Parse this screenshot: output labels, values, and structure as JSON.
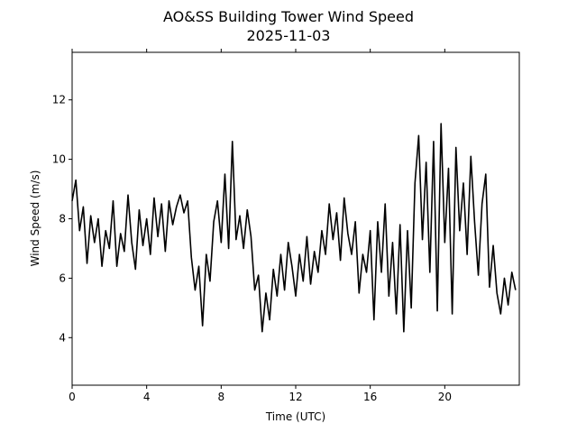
{
  "chart_data": {
    "type": "line",
    "title": "AO&SS Building Tower Wind Speed",
    "subtitle": "2025-11-03",
    "x_label": "Time (UTC)",
    "y_label": "Wind Speed (m/s)",
    "color": "#000000",
    "x": [
      0,
      0.2,
      0.4,
      0.6,
      0.8,
      1,
      1.2,
      1.4,
      1.6,
      1.8,
      2,
      2.2,
      2.4,
      2.6,
      2.8,
      3,
      3.2,
      3.4,
      3.6,
      3.8,
      4,
      4.2,
      4.4,
      4.6,
      4.8,
      5,
      5.2,
      5.4,
      5.6,
      5.8,
      6,
      6.2,
      6.4,
      6.6,
      6.8,
      7,
      7.2,
      7.4,
      7.6,
      7.8,
      8,
      8.2,
      8.4,
      8.6,
      8.8,
      9,
      9.2,
      9.4,
      9.6,
      9.8,
      10,
      10.2,
      10.4,
      10.6,
      10.8,
      11,
      11.2,
      11.4,
      11.6,
      11.8,
      12,
      12.2,
      12.4,
      12.6,
      12.8,
      13,
      13.2,
      13.4,
      13.6,
      13.8,
      14,
      14.2,
      14.4,
      14.6,
      14.8,
      15,
      15.2,
      15.4,
      15.6,
      15.8,
      16,
      16.2,
      16.4,
      16.6,
      16.8,
      17,
      17.2,
      17.4,
      17.6,
      17.8,
      18,
      18.2,
      18.4,
      18.6,
      18.8,
      19,
      19.2,
      19.4,
      19.6,
      19.8,
      20,
      20.2,
      20.4,
      20.6,
      20.8,
      21,
      21.2,
      21.4,
      21.6,
      21.8,
      22,
      22.2,
      22.4,
      22.6,
      22.8,
      23,
      23.2,
      23.4,
      23.6,
      23.8
    ],
    "values": [
      8.6,
      9.3,
      7.6,
      8.4,
      6.5,
      8.1,
      7.2,
      8.0,
      6.4,
      7.6,
      7.0,
      8.6,
      6.4,
      7.5,
      6.9,
      8.8,
      7.2,
      6.3,
      8.3,
      7.1,
      8.0,
      6.8,
      8.7,
      7.4,
      8.5,
      6.9,
      8.6,
      7.8,
      8.4,
      8.8,
      8.2,
      8.6,
      6.7,
      5.6,
      6.4,
      4.4,
      6.8,
      5.9,
      7.9,
      8.6,
      7.2,
      9.5,
      7.0,
      10.6,
      7.3,
      8.1,
      7.0,
      8.3,
      7.4,
      5.6,
      6.1,
      4.2,
      5.5,
      4.6,
      6.3,
      5.4,
      6.8,
      5.6,
      7.2,
      6.4,
      5.4,
      6.8,
      5.9,
      7.4,
      5.8,
      6.9,
      6.2,
      7.6,
      6.8,
      8.5,
      7.3,
      8.2,
      6.6,
      8.7,
      7.5,
      6.8,
      7.9,
      5.5,
      6.8,
      6.2,
      7.6,
      4.6,
      7.9,
      6.2,
      8.5,
      5.4,
      7.2,
      4.8,
      7.8,
      4.2,
      7.6,
      5.0,
      9.2,
      10.8,
      7.3,
      9.9,
      6.2,
      10.6,
      4.9,
      11.2,
      7.2,
      9.7,
      4.8,
      10.4,
      7.6,
      9.2,
      6.8,
      10.1,
      7.9,
      6.1,
      8.5,
      9.5,
      5.7,
      7.1,
      5.5,
      4.8,
      6.0,
      5.1,
      6.2,
      5.6
    ],
    "xlim": [
      0,
      24
    ],
    "ylim": [
      2.4,
      13.6
    ],
    "xticks": [
      0,
      4,
      8,
      12,
      16,
      20
    ],
    "yticks": [
      4,
      6,
      8,
      10,
      12
    ]
  }
}
